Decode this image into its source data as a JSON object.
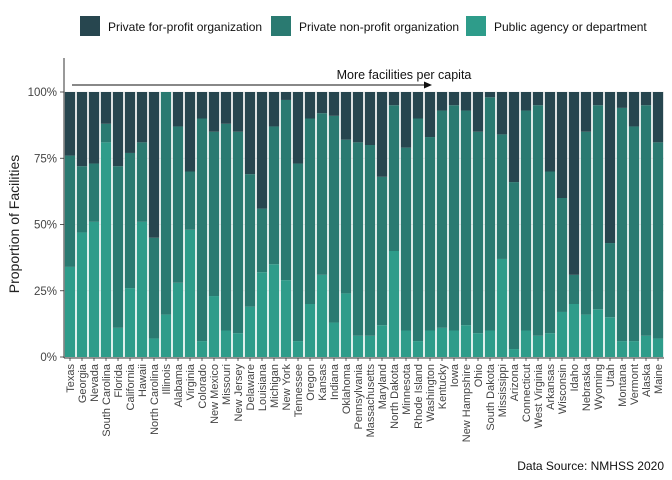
{
  "chart_data": {
    "type": "bar",
    "stacked": true,
    "ylabel": "Proportion of Facilities",
    "xlabel": "",
    "ylim": [
      0,
      1
    ],
    "yticks": [
      "0%",
      "25%",
      "50%",
      "75%",
      "100%"
    ],
    "annotation": "More facilities per capita",
    "caption": "Data Source: NMHSS 2020",
    "legend_position": "top",
    "categories": [
      "Texas",
      "Georgia",
      "Nevada",
      "South Carolina",
      "Florida",
      "California",
      "Hawaii",
      "North Carolina",
      "Illinois",
      "Alabama",
      "Virginia",
      "Colorado",
      "New Mexico",
      "Missouri",
      "New Jersey",
      "Delaware",
      "Louisiana",
      "Michigan",
      "New York",
      "Tennessee",
      "Oregon",
      "Kansas",
      "Indiana",
      "Oklahoma",
      "Pennsylvania",
      "Massachusetts",
      "Maryland",
      "North Dakota",
      "Minnesota",
      "Rhode Island",
      "Washington",
      "Kentucky",
      "Iowa",
      "New Hampshire",
      "Ohio",
      "South Dakota",
      "Mississippi",
      "Arizona",
      "Connecticut",
      "West Virginia",
      "Arkansas",
      "Wisconsin",
      "Idaho",
      "Nebraska",
      "Wyoming",
      "Utah",
      "Montana",
      "Vermont",
      "Alaska",
      "Maine"
    ],
    "series": [
      {
        "name": "Private for-profit organization",
        "color": "#27464f",
        "values": [
          0.24,
          0.28,
          0.27,
          0.12,
          0.28,
          0.23,
          0.19,
          0.55,
          0.0,
          0.13,
          0.3,
          0.1,
          0.15,
          0.12,
          0.15,
          0.31,
          0.44,
          0.13,
          0.03,
          0.27,
          0.1,
          0.08,
          0.09,
          0.18,
          0.19,
          0.2,
          0.32,
          0.05,
          0.21,
          0.1,
          0.17,
          0.07,
          0.05,
          0.07,
          0.15,
          0.02,
          0.16,
          0.34,
          0.07,
          0.05,
          0.3,
          0.4,
          0.69,
          0.15,
          0.05,
          0.57,
          0.06,
          0.13,
          0.05,
          0.19
        ]
      },
      {
        "name": "Private non-profit organization",
        "color": "#2a7a71",
        "values": [
          0.42,
          0.25,
          0.22,
          0.07,
          0.61,
          0.51,
          0.3,
          0.38,
          0.84,
          0.59,
          0.22,
          0.84,
          0.62,
          0.78,
          0.76,
          0.5,
          0.24,
          0.52,
          0.68,
          0.67,
          0.7,
          0.61,
          0.78,
          0.58,
          0.73,
          0.72,
          0.56,
          0.55,
          0.69,
          0.84,
          0.73,
          0.82,
          0.85,
          0.81,
          0.76,
          0.88,
          0.47,
          0.63,
          0.83,
          0.87,
          0.61,
          0.43,
          0.11,
          0.69,
          0.77,
          0.28,
          0.88,
          0.81,
          0.87,
          0.74
        ]
      },
      {
        "name": "Public agency or department",
        "color": "#2e9c8a",
        "values": [
          0.34,
          0.47,
          0.51,
          0.81,
          0.11,
          0.26,
          0.51,
          0.07,
          0.16,
          0.28,
          0.48,
          0.06,
          0.23,
          0.1,
          0.09,
          0.19,
          0.32,
          0.35,
          0.29,
          0.06,
          0.2,
          0.31,
          0.13,
          0.24,
          0.08,
          0.08,
          0.12,
          0.4,
          0.1,
          0.06,
          0.1,
          0.11,
          0.1,
          0.12,
          0.09,
          0.1,
          0.37,
          0.03,
          0.1,
          0.08,
          0.09,
          0.17,
          0.2,
          0.16,
          0.18,
          0.15,
          0.06,
          0.06,
          0.08,
          0.07
        ]
      }
    ]
  }
}
